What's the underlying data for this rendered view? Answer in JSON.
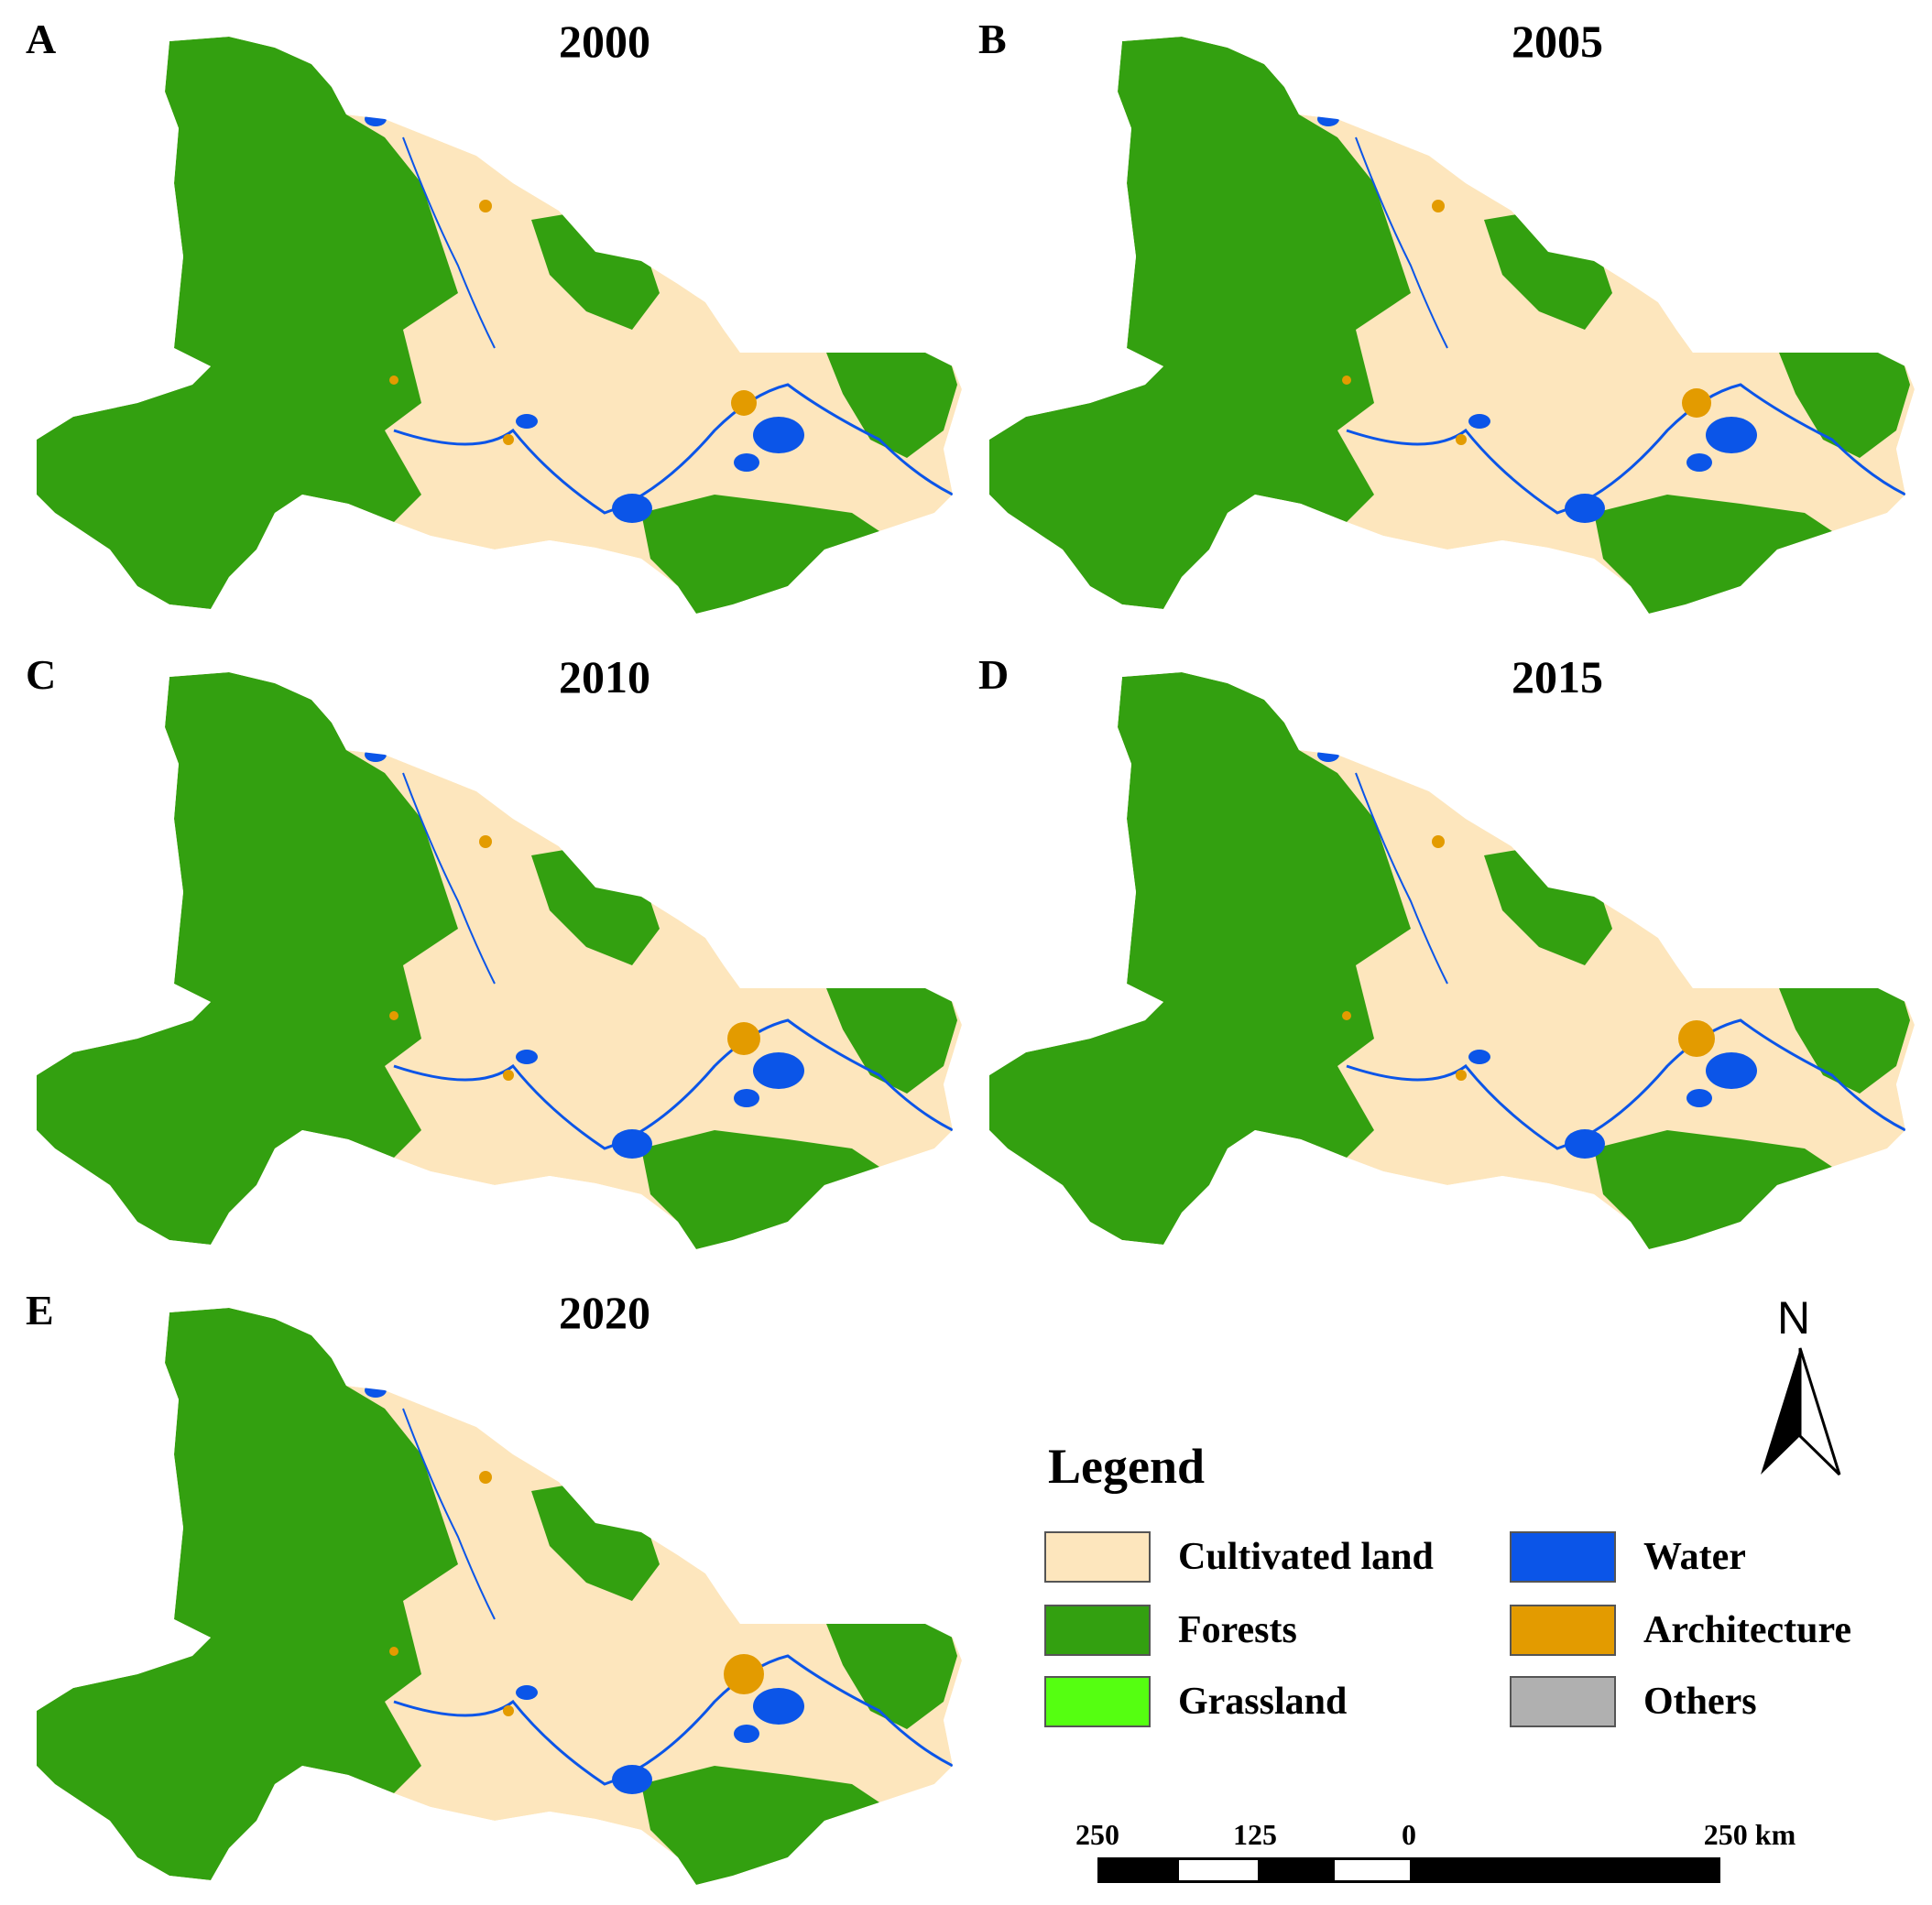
{
  "panels": [
    {
      "letter": "A",
      "year": "2000"
    },
    {
      "letter": "B",
      "year": "2005"
    },
    {
      "letter": "C",
      "year": "2010"
    },
    {
      "letter": "D",
      "year": "2015"
    },
    {
      "letter": "E",
      "year": "2020"
    }
  ],
  "legend": {
    "title": "Legend",
    "items": [
      {
        "label": "Cultivated land",
        "color": "#fde6bd"
      },
      {
        "label": "Forests",
        "color": "#33a010"
      },
      {
        "label": "Grassland",
        "color": "#55ff11"
      },
      {
        "label": "Water",
        "color": "#0b55e8"
      },
      {
        "label": "Architecture",
        "color": "#e39b00"
      },
      {
        "label": "Others",
        "color": "#b0b0b0"
      }
    ]
  },
  "north_arrow": {
    "label": "N"
  },
  "scale_bar": {
    "labels": [
      "250",
      "125",
      "0",
      "250 km"
    ]
  }
}
